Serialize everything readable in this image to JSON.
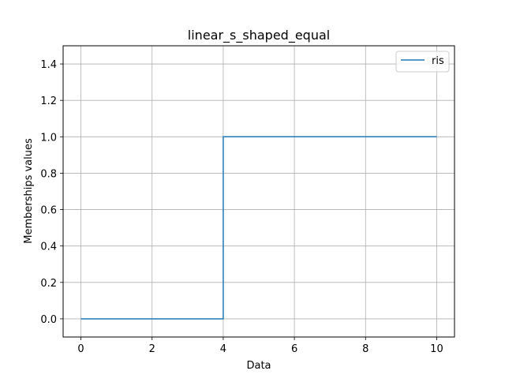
{
  "chart_data": {
    "type": "line",
    "title": "linear_s_shaped_equal",
    "xlabel": "Data",
    "ylabel": "Memberships values",
    "xlim": [
      -0.5,
      10.5
    ],
    "ylim": [
      -0.1,
      1.5
    ],
    "xticks": [
      0,
      2,
      4,
      6,
      8,
      10
    ],
    "yticks": [
      0.0,
      0.2,
      0.4,
      0.6,
      0.8,
      1.0,
      1.2,
      1.4
    ],
    "xtick_labels": [
      "0",
      "2",
      "4",
      "6",
      "8",
      "10"
    ],
    "ytick_labels": [
      "0.0",
      "0.2",
      "0.4",
      "0.6",
      "0.8",
      "1.0",
      "1.2",
      "1.4"
    ],
    "grid": true,
    "legend_position": "top-right",
    "series": [
      {
        "name": "ris",
        "color": "#1f77b4",
        "x": [
          0,
          4,
          4,
          10
        ],
        "y": [
          0,
          0,
          1,
          1
        ]
      }
    ]
  }
}
